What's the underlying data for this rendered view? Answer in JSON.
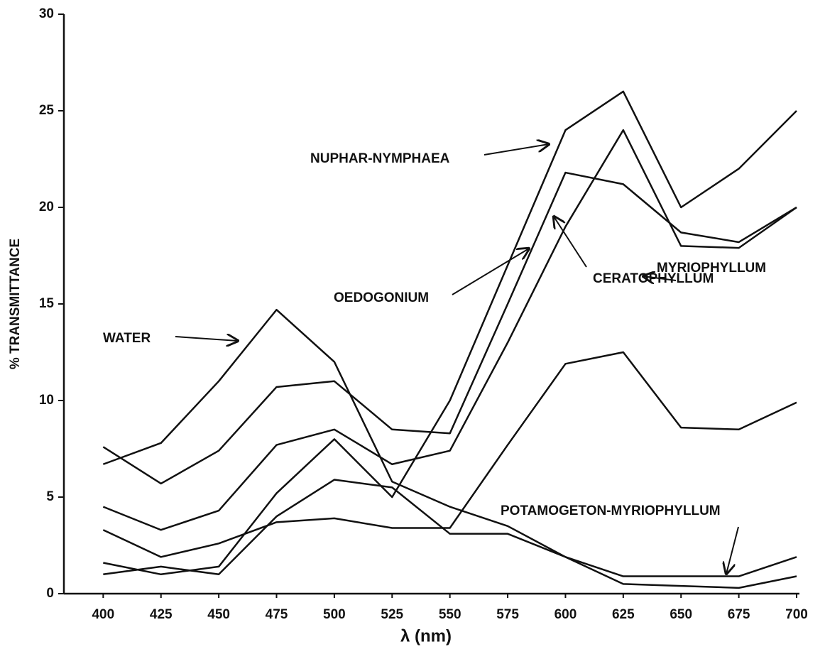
{
  "chart_data": {
    "type": "line",
    "x_label": "λ (nm)",
    "y_label": "% TRANSMITTANCE",
    "x": [
      400,
      425,
      450,
      475,
      500,
      525,
      550,
      575,
      600,
      625,
      650,
      675,
      700
    ],
    "xlim": [
      383,
      700
    ],
    "xticks": [
      400,
      425,
      450,
      475,
      500,
      525,
      550,
      575,
      600,
      625,
      650,
      675,
      700
    ],
    "ylim": [
      0,
      30
    ],
    "yticks": [
      0,
      5,
      10,
      15,
      20,
      25,
      30
    ],
    "grid": false,
    "series": [
      {
        "name": "WATER",
        "color": "#111111",
        "values": [
          6.7,
          7.8,
          11,
          14.7,
          12,
          5.8,
          4.5,
          3.5,
          1.9,
          0.5,
          0.4,
          0.3,
          0.9
        ]
      },
      {
        "name": "NUPHAR-NYMPHAEA",
        "color": "#111111",
        "values": [
          1.6,
          1.0,
          1.4,
          5.2,
          8,
          5,
          10,
          17,
          24,
          26,
          20,
          22,
          25
        ]
      },
      {
        "name": "OEDOGONIUM",
        "color": "#111111",
        "values": [
          4.5,
          3.3,
          4.3,
          7.7,
          8.5,
          6.7,
          7.4,
          13,
          19,
          24,
          18,
          17.9,
          20
        ]
      },
      {
        "name": "CERATOPHYLLUM",
        "color": "#111111",
        "values": [
          7.6,
          5.7,
          7.4,
          10.7,
          11,
          8.5,
          8.3,
          15,
          21.8,
          21.2,
          18.7,
          18.2,
          20
        ]
      },
      {
        "name": "MYRIOPHYLLUM",
        "color": "#111111",
        "values": [
          3.3,
          1.9,
          2.6,
          3.7,
          3.9,
          3.4,
          3.4,
          7.7,
          11.9,
          12.5,
          8.6,
          8.5,
          9.9
        ]
      },
      {
        "name": "POTAMOGETON-MYRIOPHYLLUM",
        "color": "#111111",
        "values": [
          1.0,
          1.4,
          1.0,
          4,
          5.9,
          5.5,
          3.1,
          3.1,
          1.9,
          0.9,
          0.9,
          0.9,
          1.9
        ]
      }
    ]
  }
}
